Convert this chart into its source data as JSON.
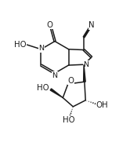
{
  "bg_color": "#ffffff",
  "line_color": "#1a1a1a",
  "line_width": 1.1,
  "font_size": 6.8,
  "figsize": [
    1.66,
    2.14
  ],
  "dpi": 100,
  "xlim": [
    0,
    10
  ],
  "ylim": [
    0,
    13
  ]
}
